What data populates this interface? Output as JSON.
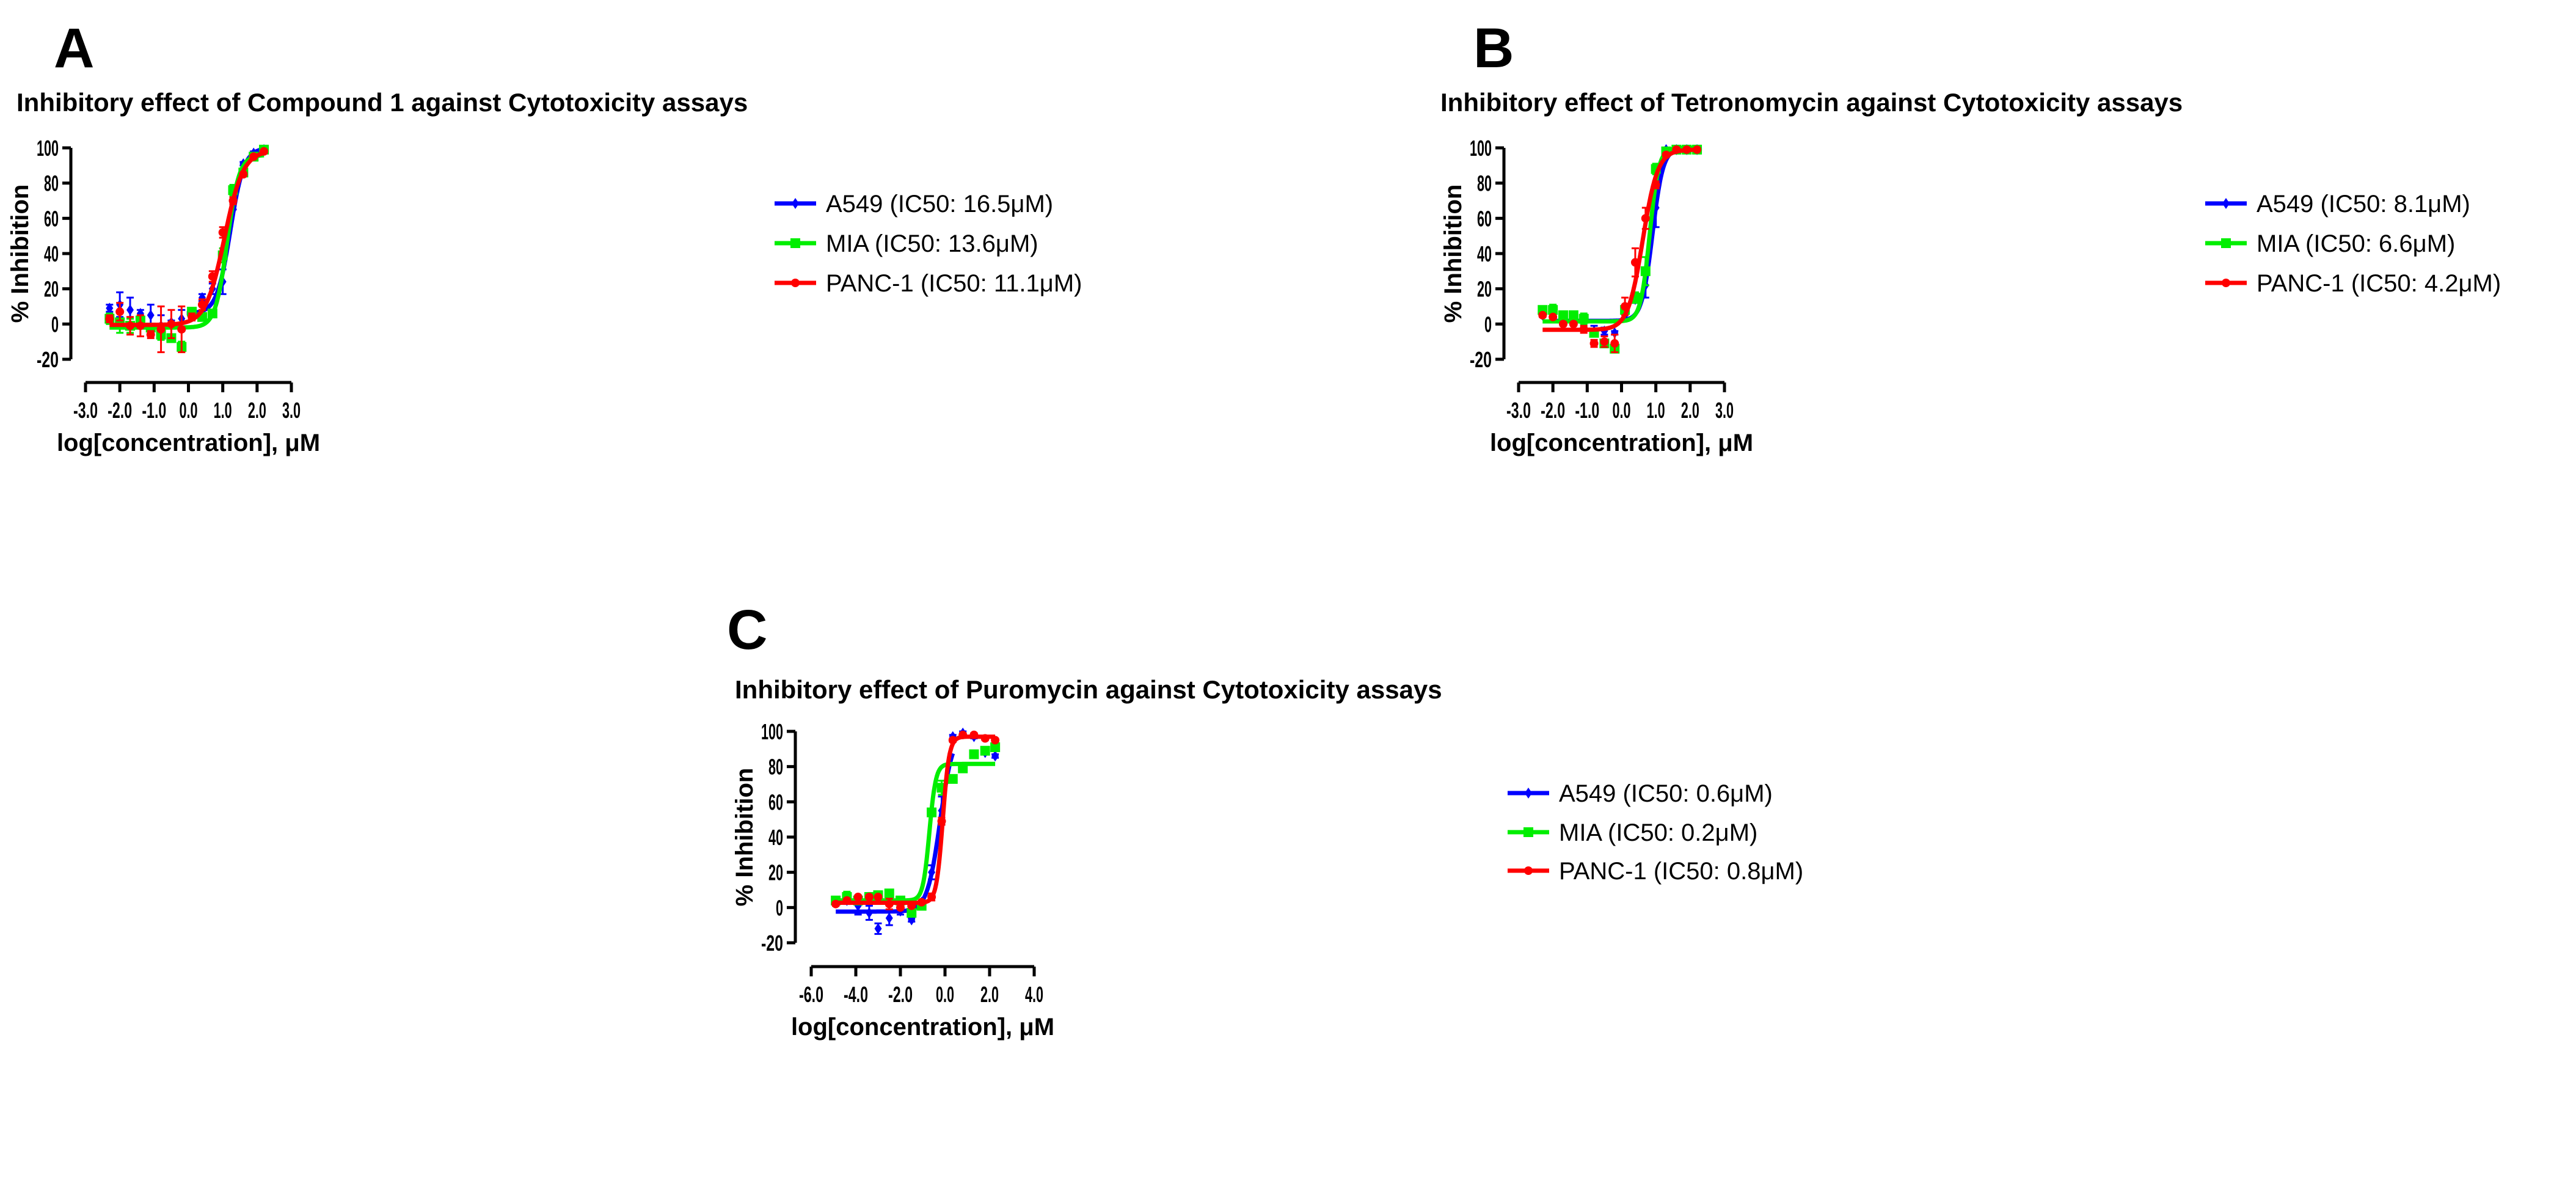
{
  "colors": {
    "A549": "#0000ff",
    "MIA": "#00ee00",
    "PANC-1": "#ff0000",
    "axis": "#000000"
  },
  "chart_data": [
    {
      "panel": "A",
      "type": "scatter",
      "title": "Inhibitory effect of Compound 1 against Cytotoxicity assays",
      "xlabel": "log[concentration], μM",
      "ylabel": "% Inhibition",
      "xlim": [
        -3,
        3
      ],
      "ylim": [
        -20,
        100
      ],
      "xticks": [
        -3,
        -2,
        -1,
        0,
        1,
        2,
        3
      ],
      "xtick_labels": [
        "-3.0",
        "-2.0",
        "-1.0",
        "0.0",
        "1.0",
        "2.0",
        "3.0"
      ],
      "yticks": [
        -20,
        0,
        20,
        40,
        60,
        80,
        100
      ],
      "ytick_labels": [
        "-20",
        "0",
        "20",
        "40",
        "60",
        "80",
        "100"
      ],
      "legend_position": "right",
      "x": [
        -2.3,
        -2.0,
        -1.7,
        -1.4,
        -1.1,
        -0.8,
        -0.5,
        -0.2,
        0.1,
        0.4,
        0.7,
        1.0,
        1.3,
        1.6,
        1.9,
        2.2
      ],
      "series": [
        {
          "name": "A549",
          "legend": "A549 (IC50: 16.5μM)",
          "marker": "diamond",
          "values": [
            9,
            11,
            8,
            6,
            5,
            -1,
            1,
            3,
            4,
            15,
            20,
            24,
            67,
            91,
            97,
            99
          ],
          "errors": [
            2,
            7,
            7,
            2,
            6,
            6,
            1,
            5,
            1,
            2,
            3,
            7,
            2,
            1,
            1,
            1
          ],
          "fit": {
            "bottom": 6,
            "top": 100,
            "logIC50": 1.22,
            "hill": 2.2,
            "xmin": -0.05,
            "xmax": 2.2
          }
        },
        {
          "name": "MIA",
          "legend": "MIA (IC50: 13.6μM)",
          "marker": "square",
          "values": [
            3,
            1,
            -1,
            2,
            -2,
            -6,
            -8,
            -13,
            7,
            4,
            6,
            39,
            76,
            86,
            95,
            99
          ],
          "errors": [
            3,
            6,
            4,
            3,
            1,
            3,
            1,
            3,
            2,
            1,
            2,
            4,
            3,
            1,
            1,
            1
          ],
          "fit": {
            "bottom": -2,
            "top": 96,
            "logIC50": 1.13,
            "hill": 2.5,
            "xmin": -2.3,
            "xmax": 2.2
          }
        },
        {
          "name": "PANC-1",
          "legend": "PANC-1 (IC50: 11.1μM)",
          "marker": "circle",
          "values": [
            3,
            7,
            -1,
            -1,
            -6,
            -3,
            0,
            -3,
            4,
            11,
            27,
            52,
            70,
            85,
            95,
            98
          ],
          "errors": [
            2,
            5,
            5,
            6,
            2,
            13,
            8,
            13,
            2,
            3,
            3,
            3,
            2,
            1,
            1,
            1
          ],
          "fit": {
            "bottom": -0.5,
            "top": 98.5,
            "logIC50": 1.05,
            "hill": 1.6,
            "xmin": -2.3,
            "xmax": 2.2
          }
        }
      ]
    },
    {
      "panel": "B",
      "type": "scatter",
      "title": "Inhibitory effect of Tetronomycin against Cytotoxicity assays",
      "xlabel": "log[concentration], μM",
      "ylabel": "% Inhibition",
      "xlim": [
        -3,
        3
      ],
      "ylim": [
        -20,
        100
      ],
      "xticks": [
        -3,
        -2,
        -1,
        0,
        1,
        2,
        3
      ],
      "xtick_labels": [
        "-3.0",
        "-2.0",
        "-1.0",
        "0.0",
        "1.0",
        "2.0",
        "3.0"
      ],
      "yticks": [
        -20,
        0,
        20,
        40,
        60,
        80,
        100
      ],
      "ytick_labels": [
        "-20",
        "0",
        "20",
        "40",
        "60",
        "80",
        "100"
      ],
      "legend_position": "right",
      "x": [
        -2.3,
        -2.0,
        -1.7,
        -1.4,
        -1.1,
        -0.8,
        -0.5,
        -0.2,
        0.1,
        0.4,
        0.7,
        1.0,
        1.3,
        1.6,
        1.9,
        2.2
      ],
      "series": [
        {
          "name": "A549",
          "legend": "A549 (IC50: 8.1μM)",
          "marker": "diamond",
          "values": [
            5,
            6,
            4,
            1,
            0,
            -4,
            -4,
            -5,
            5,
            14,
            22,
            66,
            99,
            99,
            99,
            99
          ],
          "errors": [
            1,
            1,
            2,
            4,
            2,
            3,
            2,
            1,
            2,
            2,
            7,
            11,
            1,
            1,
            1,
            1
          ],
          "fit": {
            "bottom": 1.8,
            "top": 100,
            "logIC50": 0.9,
            "hill": 2.8,
            "xmin": -1.95,
            "xmax": 1.6
          }
        },
        {
          "name": "MIA",
          "legend": "MIA (IC50: 6.6μM)",
          "marker": "square",
          "values": [
            8,
            8,
            5,
            5,
            3,
            -5,
            -11,
            -14,
            8,
            15,
            30,
            88,
            98,
            99,
            99,
            99
          ],
          "errors": [
            2,
            3,
            2,
            2,
            3,
            2,
            2,
            2,
            2,
            3,
            8,
            3,
            1,
            1,
            1,
            1
          ],
          "fit": {
            "bottom": 1.5,
            "top": 100,
            "logIC50": 0.82,
            "hill": 3.3,
            "xmin": -2.3,
            "xmax": 2.2
          }
        },
        {
          "name": "PANC-1",
          "legend": "PANC-1 (IC50: 4.2μM)",
          "marker": "circle",
          "values": [
            5,
            4,
            0,
            0,
            -3,
            -11,
            -10,
            -11,
            10,
            35,
            60,
            79,
            96,
            99,
            99,
            99
          ],
          "errors": [
            1,
            1,
            1,
            1,
            2,
            2,
            3,
            5,
            5,
            8,
            6,
            2,
            1,
            1,
            1,
            1
          ],
          "fit": {
            "bottom": -3.3,
            "top": 99,
            "logIC50": 0.62,
            "hill": 2.0,
            "xmin": -2.3,
            "xmax": 2.2
          }
        }
      ]
    },
    {
      "panel": "C",
      "type": "scatter",
      "title": "Inhibitory effect of Puromycin against Cytotoxicity assays",
      "xlabel": "log[concentration], μM",
      "ylabel": "% Inhibition",
      "xlim": [
        -6,
        4
      ],
      "ylim": [
        -20,
        100
      ],
      "xticks": [
        -6,
        -4,
        -2,
        0,
        2,
        4
      ],
      "xtick_labels": [
        "-6.0",
        "-4.0",
        "-2.0",
        "0.0",
        "2.0",
        "4.0"
      ],
      "yticks": [
        -20,
        0,
        20,
        40,
        60,
        80,
        100
      ],
      "ytick_labels": [
        "-20",
        "0",
        "20",
        "40",
        "60",
        "80",
        "100"
      ],
      "legend_position": "right",
      "x": [
        -4.9,
        -4.4,
        -3.9,
        -3.4,
        -3.0,
        -2.5,
        -2.0,
        -1.5,
        -1.05,
        -0.6,
        -0.15,
        0.35,
        0.8,
        1.3,
        1.8,
        2.25
      ],
      "series": [
        {
          "name": "A549",
          "legend": "A549 (IC50: 0.6μM)",
          "marker": "diamond",
          "values": [
            3,
            4,
            1,
            -3,
            -12,
            -6,
            -2,
            -7,
            3,
            20,
            55,
            97,
            99,
            97,
            88,
            86
          ],
          "errors": [
            2,
            2,
            5,
            4,
            3,
            4,
            2,
            1,
            1,
            4,
            8,
            1,
            1,
            1,
            1,
            1
          ],
          "fit": {
            "bottom": -2.3,
            "top": 100,
            "logIC50": -0.22,
            "hill": 1.5,
            "xmin": -4.9,
            "xmax": 0.35
          }
        },
        {
          "name": "MIA",
          "legend": "MIA (IC50: 0.2μM)",
          "marker": "square",
          "values": [
            4,
            6,
            4,
            6,
            7,
            8,
            4,
            -3,
            1,
            54,
            68,
            73,
            79,
            87,
            89,
            91
          ],
          "errors": [
            1,
            3,
            1,
            2,
            2,
            1,
            2,
            2,
            1,
            1,
            4,
            1,
            1,
            1,
            1,
            1
          ],
          "fit": {
            "bottom": 4,
            "top": 81.5,
            "logIC50": -0.7,
            "hill": 3.0,
            "xmin": -4.9,
            "xmax": 2.25
          }
        },
        {
          "name": "PANC-1",
          "legend": "PANC-1 (IC50: 0.8μM)",
          "marker": "circle",
          "values": [
            2,
            4,
            6,
            6,
            6,
            2,
            0,
            1,
            3,
            6,
            49,
            95,
            98,
            98,
            96,
            95
          ],
          "errors": [
            1,
            1,
            1,
            1,
            1,
            3,
            1,
            1,
            1,
            2,
            2,
            1,
            1,
            1,
            1,
            1
          ],
          "fit": {
            "bottom": 2.7,
            "top": 97,
            "logIC50": -0.1,
            "hill": 3.0,
            "xmin": -4.9,
            "xmax": 2.25
          }
        }
      ]
    }
  ]
}
